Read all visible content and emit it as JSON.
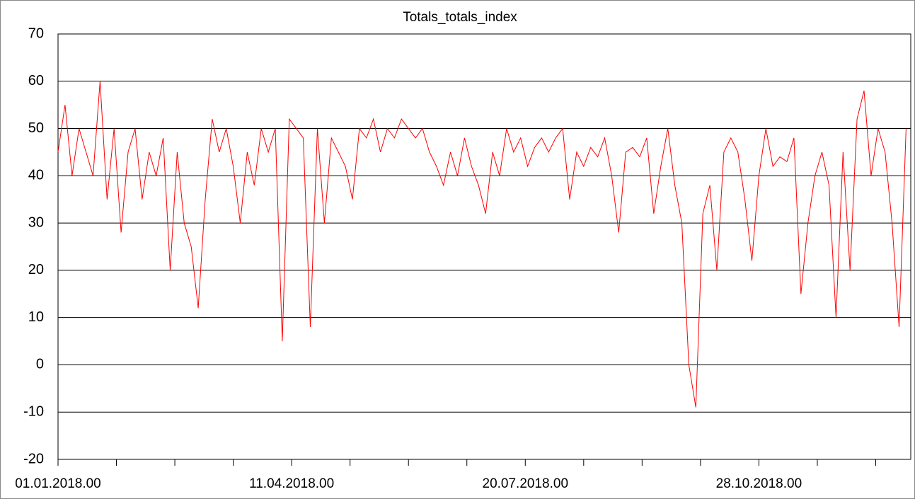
{
  "chart_data": {
    "type": "line",
    "title": "Totals_totals_index",
    "x": [
      "2018-01-01",
      "2018-01-04",
      "2018-01-07",
      "2018-01-10",
      "2018-01-13",
      "2018-01-16",
      "2018-01-19",
      "2018-01-22",
      "2018-01-25",
      "2018-01-28",
      "2018-01-31",
      "2018-02-03",
      "2018-02-06",
      "2018-02-09",
      "2018-02-12",
      "2018-02-15",
      "2018-02-18",
      "2018-02-21",
      "2018-02-24",
      "2018-02-27",
      "2018-03-02",
      "2018-03-05",
      "2018-03-08",
      "2018-03-11",
      "2018-03-14",
      "2018-03-17",
      "2018-03-20",
      "2018-03-23",
      "2018-03-26",
      "2018-03-29",
      "2018-04-01",
      "2018-04-04",
      "2018-04-07",
      "2018-04-10",
      "2018-04-13",
      "2018-04-16",
      "2018-04-19",
      "2018-04-22",
      "2018-04-25",
      "2018-04-28",
      "2018-05-01",
      "2018-05-04",
      "2018-05-07",
      "2018-05-10",
      "2018-05-13",
      "2018-05-16",
      "2018-05-19",
      "2018-05-22",
      "2018-05-25",
      "2018-05-28",
      "2018-05-31",
      "2018-06-03",
      "2018-06-06",
      "2018-06-09",
      "2018-06-12",
      "2018-06-15",
      "2018-06-18",
      "2018-06-21",
      "2018-06-24",
      "2018-06-27",
      "2018-06-30",
      "2018-07-03",
      "2018-07-06",
      "2018-07-09",
      "2018-07-12",
      "2018-07-15",
      "2018-07-18",
      "2018-07-21",
      "2018-07-24",
      "2018-07-27",
      "2018-07-30",
      "2018-08-02",
      "2018-08-05",
      "2018-08-08",
      "2018-08-11",
      "2018-08-14",
      "2018-08-17",
      "2018-08-20",
      "2018-08-23",
      "2018-08-26",
      "2018-08-29",
      "2018-09-01",
      "2018-09-04",
      "2018-09-07",
      "2018-09-10",
      "2018-09-13",
      "2018-09-16",
      "2018-09-19",
      "2018-09-22",
      "2018-09-25",
      "2018-09-28",
      "2018-10-01",
      "2018-10-04",
      "2018-10-07",
      "2018-10-10",
      "2018-10-13",
      "2018-10-16",
      "2018-10-19",
      "2018-10-22",
      "2018-10-25",
      "2018-10-28",
      "2018-10-31",
      "2018-11-03",
      "2018-11-06",
      "2018-11-09",
      "2018-11-12",
      "2018-11-15",
      "2018-11-18",
      "2018-11-21",
      "2018-11-24",
      "2018-11-27",
      "2018-11-30",
      "2018-12-03",
      "2018-12-06",
      "2018-12-09",
      "2018-12-12",
      "2018-12-15",
      "2018-12-18",
      "2018-12-21",
      "2018-12-24",
      "2018-12-27",
      "2018-12-30"
    ],
    "series": [
      {
        "name": "Totals_totals_index",
        "color": "#ff0000",
        "values": [
          45,
          55,
          40,
          50,
          45,
          40,
          60,
          35,
          50,
          28,
          45,
          50,
          35,
          45,
          40,
          48,
          20,
          45,
          30,
          25,
          12,
          35,
          52,
          45,
          50,
          42,
          30,
          45,
          38,
          50,
          45,
          50,
          5,
          52,
          50,
          48,
          8,
          50,
          30,
          48,
          45,
          42,
          35,
          50,
          48,
          52,
          45,
          50,
          48,
          52,
          50,
          48,
          50,
          45,
          42,
          38,
          45,
          40,
          48,
          42,
          38,
          32,
          45,
          40,
          50,
          45,
          48,
          42,
          46,
          48,
          45,
          48,
          50,
          35,
          45,
          42,
          46,
          44,
          48,
          40,
          28,
          45,
          46,
          44,
          48,
          32,
          42,
          50,
          38,
          30,
          0,
          -9,
          32,
          38,
          20,
          45,
          48,
          45,
          35,
          22,
          40,
          50,
          42,
          44,
          43,
          48,
          15,
          30,
          40,
          45,
          38,
          10,
          45,
          20,
          52,
          58,
          40,
          50,
          45,
          30,
          8,
          50
        ]
      }
    ],
    "xlim": [
      "2018-01-01",
      "2019-01-01"
    ],
    "xticks": [
      {
        "value": "2018-01-01",
        "label": "01.01.2018.00"
      },
      {
        "value": "2018-04-11",
        "label": "11.04.2018.00"
      },
      {
        "value": "2018-07-20",
        "label": "20.07.2018.00"
      },
      {
        "value": "2018-10-28",
        "label": "28.10.2018.00"
      }
    ],
    "xminorticks": [
      "2018-01-26",
      "2018-02-20",
      "2018-03-17",
      "2018-05-06",
      "2018-05-31",
      "2018-06-25",
      "2018-08-14",
      "2018-09-08",
      "2018-10-03",
      "2018-11-22",
      "2018-12-17"
    ],
    "ylim": [
      -20,
      70
    ],
    "yticks": [
      -20,
      -10,
      0,
      10,
      20,
      30,
      40,
      50,
      60,
      70
    ],
    "grid": true
  }
}
